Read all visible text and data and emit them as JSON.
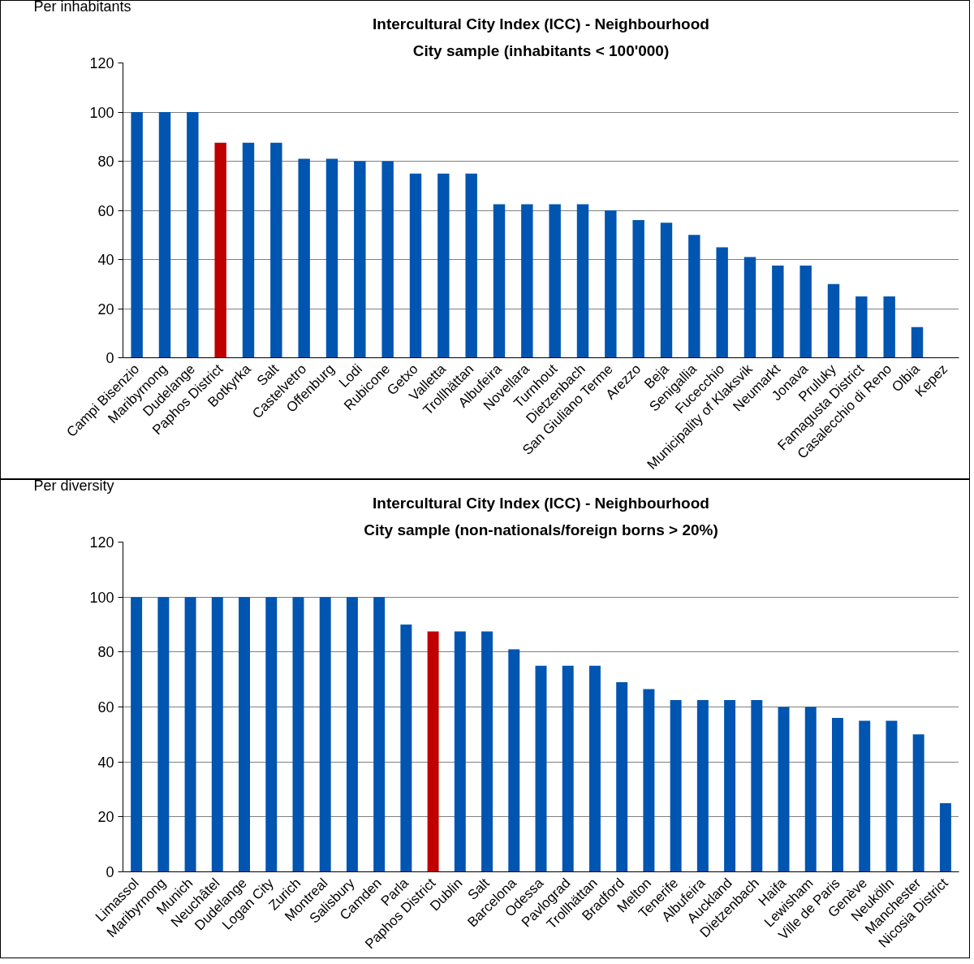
{
  "chart_data": [
    {
      "type": "bar",
      "title": "Intercultural City Index (ICC) - Neighbourhood",
      "subtitle": "City sample (inhabitants < 100'000)",
      "annotations": [
        "Per inhabitants"
      ],
      "categories": [
        "Campi Bisenzio",
        "Maribyrnong",
        "Dudelange",
        "Paphos District",
        "Botkyrka",
        "Salt",
        "Castelvetro",
        "Offenburg",
        "Lodi",
        "Rubicone",
        "Getxo",
        "Valletta",
        "Trollhättan",
        "Albufeira",
        "Novellara",
        "Turnhout",
        "Dietzenbach",
        "San Giuliano Terme",
        "Arezzo",
        "Beja",
        "Senigallia",
        "Fucecchio",
        "Municipality of Klaksvik",
        "Neumarkt",
        "Jonava",
        "Pruluky",
        "Famagusta District",
        "Casalecchio di Reno",
        "Olbia",
        "Kepez"
      ],
      "values": [
        100,
        100,
        100,
        87.5,
        87.5,
        87.5,
        81,
        81,
        80,
        80,
        75,
        75,
        75,
        62.5,
        62.5,
        62.5,
        62.5,
        60,
        56,
        55,
        50,
        45,
        41,
        37.5,
        37.5,
        30,
        25,
        25,
        12.5,
        0
      ],
      "colors": [
        "#0055b0",
        "#0055b0",
        "#0055b0",
        "#c00000",
        "#0055b0",
        "#0055b0",
        "#0055b0",
        "#0055b0",
        "#0055b0",
        "#0055b0",
        "#0055b0",
        "#0055b0",
        "#0055b0",
        "#0055b0",
        "#0055b0",
        "#0055b0",
        "#0055b0",
        "#0055b0",
        "#0055b0",
        "#0055b0",
        "#0055b0",
        "#0055b0",
        "#0055b0",
        "#0055b0",
        "#0055b0",
        "#0055b0",
        "#0055b0",
        "#0055b0",
        "#0055b0",
        "#0055b0"
      ],
      "ylim": [
        0,
        120
      ],
      "yticks": [
        0,
        20,
        40,
        60,
        80,
        100,
        120
      ],
      "grid": "y"
    },
    {
      "type": "bar",
      "title": "Intercultural City Index (ICC) - Neighbourhood",
      "subtitle": "City sample (non-nationals/foreign borns > 20%)",
      "annotations": [
        "Per diversity"
      ],
      "categories": [
        "Limassol",
        "Maribyrnong",
        "Munich",
        "Neuchâtel",
        "Dudelange",
        "Logan City",
        "Zurich",
        "Montreal",
        "Salisbury",
        "Camden",
        "Parla",
        "Paphos District",
        "Dublin",
        "Salt",
        "Barcelona",
        "Odessa",
        "Pavlograd",
        "Trollhättan",
        "Bradford",
        "Melton",
        "Tenerife",
        "Albufeira",
        "Auckland",
        "Dietzenbach",
        "Haifa",
        "Lewisham",
        "Ville de Paris",
        "Genève",
        "Neukölln",
        "Manchester",
        "Nicosia District"
      ],
      "values": [
        100,
        100,
        100,
        100,
        100,
        100,
        100,
        100,
        100,
        100,
        90,
        87.5,
        87.5,
        87.5,
        81,
        75,
        75,
        75,
        69,
        66.5,
        62.5,
        62.5,
        62.5,
        62.5,
        60,
        60,
        56,
        55,
        55,
        50,
        25
      ],
      "colors": [
        "#0055b0",
        "#0055b0",
        "#0055b0",
        "#0055b0",
        "#0055b0",
        "#0055b0",
        "#0055b0",
        "#0055b0",
        "#0055b0",
        "#0055b0",
        "#0055b0",
        "#c00000",
        "#0055b0",
        "#0055b0",
        "#0055b0",
        "#0055b0",
        "#0055b0",
        "#0055b0",
        "#0055b0",
        "#0055b0",
        "#0055b0",
        "#0055b0",
        "#0055b0",
        "#0055b0",
        "#0055b0",
        "#0055b0",
        "#0055b0",
        "#0055b0",
        "#0055b0",
        "#0055b0",
        "#0055b0"
      ],
      "ylim": [
        0,
        120
      ],
      "yticks": [
        0,
        20,
        40,
        60,
        80,
        100,
        120
      ],
      "grid": "y"
    }
  ]
}
